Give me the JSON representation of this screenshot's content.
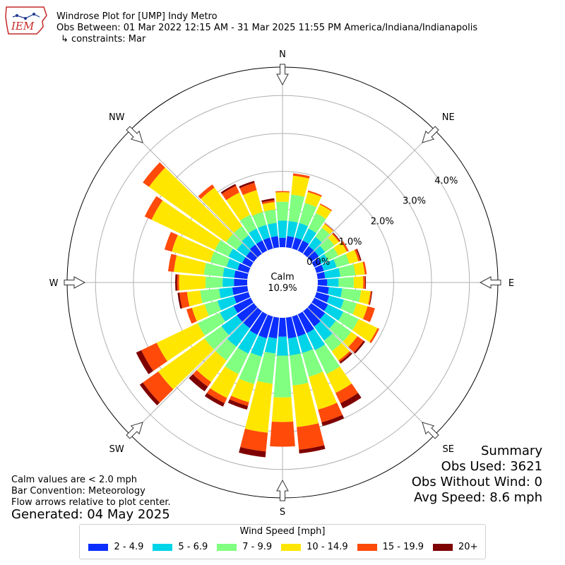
{
  "header": {
    "title": "Windrose Plot for [UMP] Indy Metro",
    "period": "Obs Between: 01 Mar 2022 12:15 AM - 31 Mar 2025 11:55 PM America/Indiana/Indianapolis",
    "constraints": "↳ constraints: Mar"
  },
  "logo": {
    "text": "IEM",
    "color": "#c62828"
  },
  "calm": {
    "label": "Calm",
    "value": "10.9%"
  },
  "summary": {
    "title": "Summary",
    "obs_used": "Obs Used: 3621",
    "obs_without_wind": "Obs Without Wind: 0",
    "avg_speed": "Avg Speed: 8.6 mph"
  },
  "notes": {
    "calm_note": "Calm values are < 2.0 mph",
    "bar_convention": "Bar Convention: Meteorology",
    "flow_note": "Flow arrows relative to plot center.",
    "generated": "Generated: 04 May 2025"
  },
  "chart_data": {
    "type": "windrose",
    "directions": [
      "N",
      "NE",
      "E",
      "SE",
      "S",
      "SW",
      "W",
      "NW"
    ],
    "radial_ticks": [
      "0.0%",
      "1.0%",
      "2.0%",
      "3.0%",
      "4.0%"
    ],
    "radial_values": [
      0,
      1,
      2,
      3,
      4
    ],
    "radial_max": 4.75,
    "legend_title": "Wind Speed [mph]",
    "bins": [
      {
        "label": "2 - 4.9",
        "color": "#0b2eff"
      },
      {
        "label": "5 - 6.9",
        "color": "#00d4e8"
      },
      {
        "label": "7 - 9.9",
        "color": "#80ff80"
      },
      {
        "label": "10 - 14.9",
        "color": "#ffe600"
      },
      {
        "label": "15 - 19.9",
        "color": "#ff4a0a"
      },
      {
        "label": "20+",
        "color": "#7f0000"
      }
    ],
    "sectors": [
      {
        "dir": 0,
        "values": [
          0.25,
          0.45,
          0.5,
          0.25,
          0.03,
          0
        ]
      },
      {
        "dir": 10,
        "values": [
          0.3,
          0.4,
          0.7,
          0.5,
          0.06,
          0
        ]
      },
      {
        "dir": 20,
        "values": [
          0.3,
          0.4,
          0.55,
          0.3,
          0.04,
          0
        ]
      },
      {
        "dir": 30,
        "values": [
          0.3,
          0.35,
          0.45,
          0.25,
          0.03,
          0
        ]
      },
      {
        "dir": 40,
        "values": [
          0.25,
          0.3,
          0.3,
          0.12,
          0.02,
          0
        ]
      },
      {
        "dir": 50,
        "values": [
          0.25,
          0.2,
          0.3,
          0.15,
          0.03,
          0.02
        ]
      },
      {
        "dir": 60,
        "values": [
          0.2,
          0.2,
          0.3,
          0.25,
          0.05,
          0
        ]
      },
      {
        "dir": 70,
        "values": [
          0.2,
          0.35,
          0.35,
          0.25,
          0.05,
          0.03
        ]
      },
      {
        "dir": 80,
        "values": [
          0.2,
          0.4,
          0.4,
          0.25,
          0.05,
          0
        ]
      },
      {
        "dir": 90,
        "values": [
          0.25,
          0.3,
          0.4,
          0.25,
          0.05,
          0.02
        ]
      },
      {
        "dir": 100,
        "values": [
          0.3,
          0.35,
          0.5,
          0.25,
          0.03,
          0.02
        ]
      },
      {
        "dir": 110,
        "values": [
          0.35,
          0.4,
          0.35,
          0.3,
          0.2,
          0
        ]
      },
      {
        "dir": 120,
        "values": [
          0.4,
          0.45,
          0.45,
          0.55,
          0.05,
          0
        ]
      },
      {
        "dir": 130,
        "values": [
          0.45,
          0.35,
          0.5,
          0.2,
          0.2,
          0.05
        ]
      },
      {
        "dir": 140,
        "values": [
          0.5,
          0.45,
          0.35,
          0.3,
          0.05,
          0.05
        ]
      },
      {
        "dir": 150,
        "values": [
          0.55,
          0.5,
          0.7,
          0.55,
          0.3,
          0.15
        ]
      },
      {
        "dir": 160,
        "values": [
          0.55,
          0.45,
          0.65,
          0.9,
          0.35,
          0.1
        ]
      },
      {
        "dir": 170,
        "values": [
          0.55,
          0.45,
          0.8,
          1.1,
          0.6,
          0.1
        ]
      },
      {
        "dir": 180,
        "values": [
          0.5,
          0.5,
          1.1,
          0.65,
          0.65,
          0
        ]
      },
      {
        "dir": 190,
        "values": [
          0.55,
          0.4,
          0.8,
          1.3,
          0.5,
          0.15
        ]
      },
      {
        "dir": 200,
        "values": [
          0.6,
          0.5,
          0.75,
          0.5,
          0.1,
          0.1
        ]
      },
      {
        "dir": 210,
        "values": [
          0.6,
          0.55,
          0.6,
          0.7,
          0.15,
          0.1
        ]
      },
      {
        "dir": 220,
        "values": [
          0.55,
          0.6,
          0.45,
          0.7,
          0.15,
          0.15
        ]
      },
      {
        "dir": 230,
        "values": [
          0.55,
          0.5,
          0.55,
          1.5,
          0.5,
          0.1
        ]
      },
      {
        "dir": 240,
        "values": [
          0.5,
          0.4,
          0.65,
          1.2,
          0.45,
          0.15
        ]
      },
      {
        "dir": 250,
        "values": [
          0.4,
          0.45,
          0.35,
          0.35,
          0.15,
          0
        ]
      },
      {
        "dir": 260,
        "values": [
          0.4,
          0.35,
          0.5,
          0.35,
          0.2,
          0.05
        ]
      },
      {
        "dir": 270,
        "values": [
          0.35,
          0.3,
          0.45,
          0.7,
          0.05,
          0.05
        ]
      },
      {
        "dir": 280,
        "values": [
          0.35,
          0.3,
          0.5,
          0.8,
          0.15,
          0
        ]
      },
      {
        "dir": 290,
        "values": [
          0.3,
          0.3,
          0.45,
          1.05,
          0.2,
          0
        ]
      },
      {
        "dir": 300,
        "values": [
          0.25,
          0.4,
          0.4,
          1.85,
          0.2,
          0
        ]
      },
      {
        "dir": 310,
        "values": [
          0.25,
          0.3,
          0.35,
          2.5,
          0.2,
          0
        ]
      },
      {
        "dir": 320,
        "values": [
          0.3,
          0.3,
          0.3,
          1.25,
          0.1,
          0
        ]
      },
      {
        "dir": 330,
        "values": [
          0.3,
          0.35,
          0.4,
          0.65,
          0.2,
          0.05
        ]
      },
      {
        "dir": 340,
        "values": [
          0.3,
          0.35,
          0.35,
          0.6,
          0.2,
          0.05
        ]
      },
      {
        "dir": 350,
        "values": [
          0.3,
          0.35,
          0.35,
          0.2,
          0.05,
          0.05
        ]
      }
    ]
  }
}
